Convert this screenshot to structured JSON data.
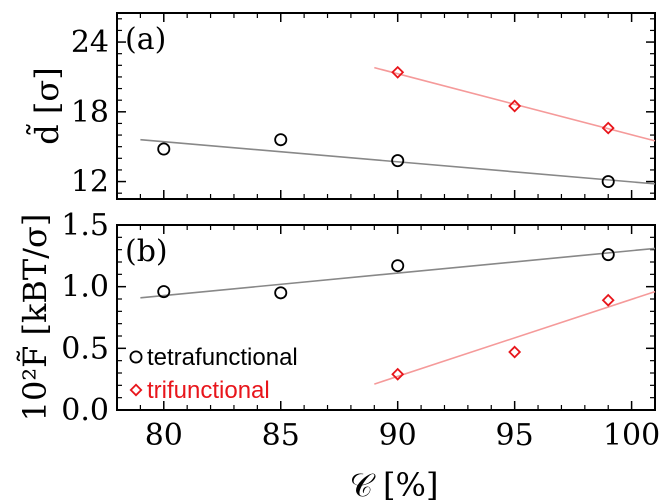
{
  "chart_data": [
    {
      "type": "scatter",
      "panel": "(a)",
      "ylabel": "d̃ [σ]",
      "xlim": [
        78,
        101
      ],
      "ylim": [
        10.5,
        26.5
      ],
      "yticks": [
        12,
        18,
        24
      ],
      "series": [
        {
          "name": "tetrafunctional",
          "marker": "circle",
          "color": "#000000",
          "fit_color": "#888888",
          "x": [
            80,
            85,
            90,
            99
          ],
          "y": [
            14.8,
            15.6,
            13.8,
            12.0
          ],
          "fit": {
            "x": [
              79,
              101
            ],
            "y": [
              15.6,
              11.8
            ]
          }
        },
        {
          "name": "trifunctional",
          "marker": "diamond",
          "color": "#e8151b",
          "fit_color": "#f59a9a",
          "x": [
            90,
            95,
            99
          ],
          "y": [
            21.4,
            18.5,
            16.6
          ],
          "fit": {
            "x": [
              89,
              101
            ],
            "y": [
              21.8,
              15.5
            ]
          }
        }
      ]
    },
    {
      "type": "scatter",
      "panel": "(b)",
      "ylabel": "10²F̃ [kBT/σ]",
      "xlabel": "𝒞 [%]",
      "xlim": [
        78,
        101
      ],
      "ylim": [
        0.0,
        1.5
      ],
      "yticks": [
        0.0,
        0.5,
        1.0,
        1.5
      ],
      "ytick_labels": [
        "0.0",
        "0.5",
        "1.0",
        "1.5"
      ],
      "xticks": [
        80,
        85,
        90,
        95,
        100
      ],
      "series": [
        {
          "name": "tetrafunctional",
          "marker": "circle",
          "color": "#000000",
          "fit_color": "#888888",
          "x": [
            80,
            85,
            90,
            99
          ],
          "y": [
            0.96,
            0.95,
            1.17,
            1.26
          ],
          "fit": {
            "x": [
              79,
              101
            ],
            "y": [
              0.91,
              1.31
            ]
          }
        },
        {
          "name": "trifunctional",
          "marker": "diamond",
          "color": "#e8151b",
          "fit_color": "#f59a9a",
          "x": [
            90,
            95,
            99
          ],
          "y": [
            0.29,
            0.47,
            0.89
          ],
          "fit": {
            "x": [
              89,
              101
            ],
            "y": [
              0.21,
              0.96
            ]
          }
        }
      ],
      "legend": {
        "position": "lower-left",
        "entries": [
          {
            "label": "tetrafunctional",
            "marker": "circle",
            "color": "#000000"
          },
          {
            "label": "trifunctional",
            "marker": "diamond",
            "color": "#e8151b"
          }
        ]
      }
    }
  ]
}
